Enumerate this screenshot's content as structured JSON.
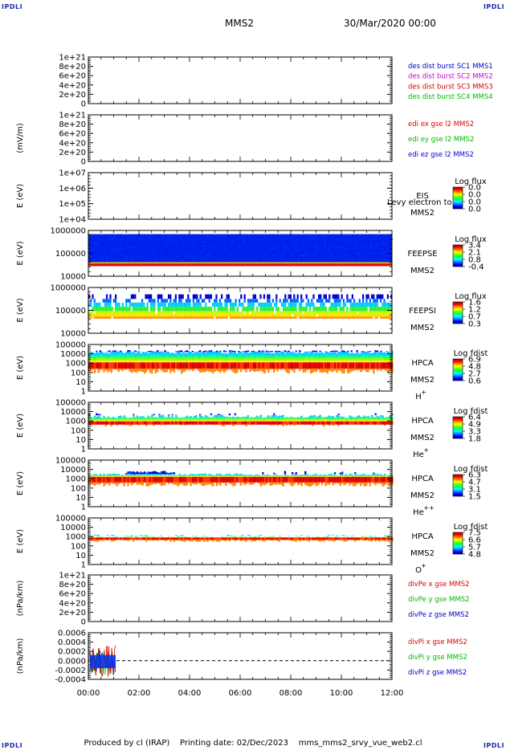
{
  "corners": {
    "top_left": "IPDLI",
    "top_right": "IPDLI",
    "bottom_left": "IPDLI",
    "bottom_right": "IPDLI"
  },
  "header": {
    "spacecraft": "MMS2",
    "datetime": "30/Mar/2020 00:00"
  },
  "footer": {
    "produced_by": "Produced by cl (IRAP)",
    "printing_date": "Printing date: 02/Dec/2023",
    "filename": "mms_mms2_srvy_vue_web2.cl"
  },
  "colors": {
    "blue": "#0000cc",
    "magenta": "#cc00cc",
    "red": "#dd0000",
    "green": "#00bb00"
  },
  "chart_data": [
    {
      "id": "panel-des-dist",
      "type": "line",
      "ylabel": "",
      "yticks": [
        "1e+21",
        "8e+20",
        "6e+20",
        "4e+20",
        "2e+20",
        "0"
      ],
      "legend": [
        {
          "text": "des dist burst SC1 MMS1",
          "color": "#0000cc"
        },
        {
          "text": "des dist burst SC2 MMS2",
          "color": "#cc00cc"
        },
        {
          "text": "des dist burst SC3 MMS3",
          "color": "#dd0000"
        },
        {
          "text": "des dist burst SC4 MMS4",
          "color": "#00bb00"
        }
      ],
      "zero_line": true
    },
    {
      "id": "panel-edi",
      "type": "line",
      "ylabel": "(mV/m)",
      "yticks": [
        "1e+21",
        "8e+20",
        "6e+20",
        "4e+20",
        "2e+20",
        "0"
      ],
      "legend": [
        {
          "text": "edi ex gse l2 MMS2",
          "color": "#dd0000"
        },
        {
          "text": "edi ey gse l2 MMS2",
          "color": "#00bb00"
        },
        {
          "text": "edi ez gse l2 MMS2",
          "color": "#0000cc"
        }
      ],
      "zero_line": true
    },
    {
      "id": "panel-eis",
      "type": "heatmap",
      "ylabel": "E (eV)",
      "yticks": [
        "1e+07",
        "1e+06",
        "1e+05",
        "1e+04"
      ],
      "instrument": "EIS",
      "instrument2": "MMS2",
      "overlay": "Levy electron to",
      "cbar_title": "Log flux",
      "cbar_ticks": [
        "0.0",
        "0.0",
        "0.0",
        "0.0"
      ]
    },
    {
      "id": "panel-feeps-e",
      "type": "heatmap",
      "ylabel": "E (eV)",
      "yticks": [
        "1000000",
        "100000",
        "10000"
      ],
      "instrument": "FEEPSE",
      "instrument2": "MMS2",
      "cbar_title": "Log flux",
      "cbar_ticks": [
        "3.4",
        "2.1",
        "0.8",
        "-0.4"
      ]
    },
    {
      "id": "panel-feeps-i",
      "type": "heatmap",
      "ylabel": "E (eV)",
      "yticks": [
        "1000000",
        "100000",
        "10000"
      ],
      "instrument": "FEEPSI",
      "instrument2": "MMS2",
      "cbar_title": "Log flux",
      "cbar_ticks": [
        "1.6",
        "1.2",
        "0.7",
        "0.3"
      ]
    },
    {
      "id": "panel-hpca-h",
      "type": "heatmap",
      "ylabel": "E (eV)",
      "yticks": [
        "100000",
        "10000",
        "1000",
        "100",
        "10",
        "1"
      ],
      "instrument": "HPCA",
      "instrument2": "MMS2",
      "species": "H",
      "species_sup": "+",
      "cbar_title": "Log fdist",
      "cbar_ticks": [
        "6.9",
        "4.8",
        "2.7",
        "0.6"
      ]
    },
    {
      "id": "panel-hpca-he",
      "type": "heatmap",
      "ylabel": "E (eV)",
      "yticks": [
        "100000",
        "10000",
        "1000",
        "100",
        "10",
        "1"
      ],
      "instrument": "HPCA",
      "instrument2": "MMS2",
      "species": "He",
      "species_sup": "+",
      "cbar_title": "Log fdist",
      "cbar_ticks": [
        "6.4",
        "4.9",
        "3.3",
        "1.8"
      ]
    },
    {
      "id": "panel-hpca-he2",
      "type": "heatmap",
      "ylabel": "E (eV)",
      "yticks": [
        "100000",
        "10000",
        "1000",
        "100",
        "10",
        "1"
      ],
      "instrument": "HPCA",
      "instrument2": "MMS2",
      "species": "He",
      "species_sup": "++",
      "cbar_title": "Log fdist",
      "cbar_ticks": [
        "6.3",
        "4.7",
        "3.1",
        "1.5"
      ]
    },
    {
      "id": "panel-hpca-o",
      "type": "heatmap",
      "ylabel": "E (eV)",
      "yticks": [
        "100000",
        "10000",
        "1000",
        "100",
        "10",
        "1"
      ],
      "instrument": "HPCA",
      "instrument2": "MMS2",
      "species": "O",
      "species_sup": "+",
      "cbar_title": "Log fdist",
      "cbar_ticks": [
        "7.5",
        "6.6",
        "5.7",
        "4.8"
      ]
    },
    {
      "id": "panel-divpe",
      "type": "line",
      "ylabel": "(nPa/km)",
      "yticks": [
        "1e+21",
        "8e+20",
        "6e+20",
        "4e+20",
        "2e+20",
        "0"
      ],
      "legend": [
        {
          "text": "divPe x gse MMS2",
          "color": "#dd0000"
        },
        {
          "text": "divPe y gse MMS2",
          "color": "#00bb00"
        },
        {
          "text": "divPe z gse MMS2",
          "color": "#0000cc"
        }
      ],
      "zero_line": true
    },
    {
      "id": "panel-divpi",
      "type": "line",
      "ylabel": "(nPa/km)",
      "yticks": [
        "0.0006",
        "0.0004",
        "0.0002",
        "0.0000",
        "-0.0002",
        "-0.0004"
      ],
      "legend": [
        {
          "text": "divPi x gse MMS2",
          "color": "#dd0000"
        },
        {
          "text": "divPi y gse MMS2",
          "color": "#00bb00"
        },
        {
          "text": "divPi z gse MMS2",
          "color": "#0000cc"
        }
      ],
      "zero_line": true,
      "data_xrange": [
        "00:00",
        "01:05"
      ]
    }
  ],
  "xaxis": {
    "ticks": [
      "00:00",
      "02:00",
      "04:00",
      "06:00",
      "08:00",
      "10:00",
      "12:00"
    ]
  }
}
